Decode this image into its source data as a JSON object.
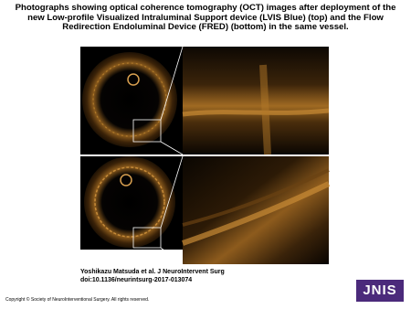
{
  "header": {
    "title": "Photographs showing optical coherence tomography (OCT) images after deployment of the new Low-profile Visualized Intraluminal Support device (LVIS Blue) (top) and the Flow Redirection Endoluminal Device (FRED) (bottom) in the same vessel."
  },
  "figure": {
    "citation": "Yoshikazu Matsuda et al. J NeuroIntervent Surg",
    "doi": "doi:10.1136/neurintsurg-2017-013074"
  },
  "footer": {
    "copyright": "Copyright © Society of NeuroInterventional Surgery. All rights reserved.",
    "logo": "JNIS"
  }
}
